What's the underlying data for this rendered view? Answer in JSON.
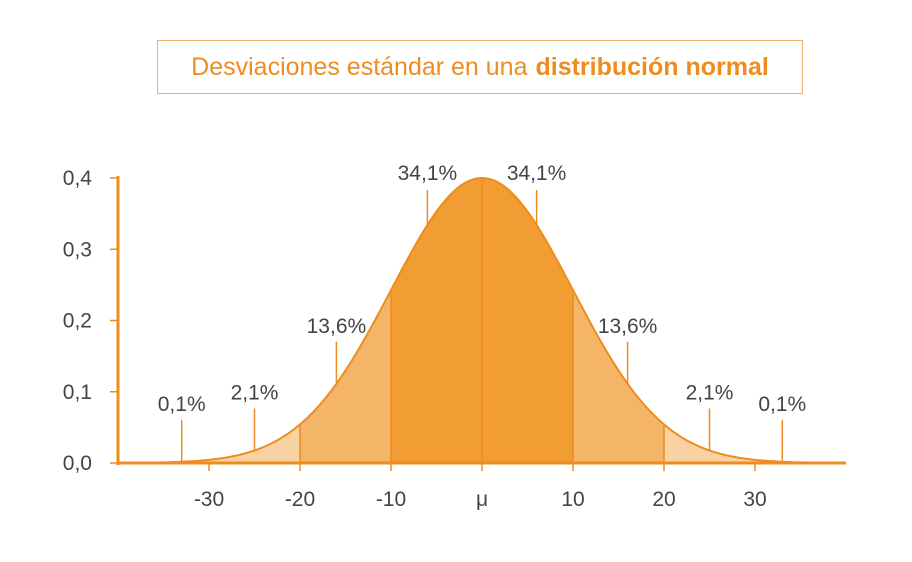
{
  "chart_data": {
    "type": "area",
    "title_regular": "Desviaciones estándar en una",
    "title_bold": "distribución normal",
    "xlabel": "",
    "ylabel": "",
    "mean": 0,
    "sd": 10,
    "xlim": [
      -40,
      40
    ],
    "ylim": [
      0,
      0.4
    ],
    "y_ticks": [
      "0,0",
      "0,1",
      "0,2",
      "0,3",
      "0,4"
    ],
    "x_ticks": [
      {
        "value": -30,
        "label": "-30"
      },
      {
        "value": -20,
        "label": "-20"
      },
      {
        "value": -10,
        "label": "-10"
      },
      {
        "value": 0,
        "label": "μ"
      },
      {
        "value": 10,
        "label": "10"
      },
      {
        "value": 20,
        "label": "20"
      },
      {
        "value": 30,
        "label": "30"
      }
    ],
    "regions": [
      {
        "from": -40,
        "to": -20,
        "tone": "light"
      },
      {
        "from": -20,
        "to": -10,
        "tone": "medium"
      },
      {
        "from": -10,
        "to": 10,
        "tone": "dark"
      },
      {
        "from": 10,
        "to": 20,
        "tone": "medium"
      },
      {
        "from": 20,
        "to": 40,
        "tone": "light"
      }
    ],
    "percent_labels": [
      {
        "x": -33,
        "label": "0,1%"
      },
      {
        "x": -25,
        "label": "2,1%"
      },
      {
        "x": -16,
        "label": "13,6%"
      },
      {
        "x": -6,
        "label": "34,1%"
      },
      {
        "x": 6,
        "label": "34,1%"
      },
      {
        "x": 16,
        "label": "13,6%"
      },
      {
        "x": 25,
        "label": "2,1%"
      },
      {
        "x": 33,
        "label": "0,1%"
      }
    ],
    "colors": {
      "axis": "#ee8c1f",
      "curve": "#ee8c1f",
      "light": "#f9d2a4",
      "medium": "#f5b569",
      "dark": "#f29d34",
      "text": "#444444",
      "title": "#ee8c1f"
    }
  }
}
